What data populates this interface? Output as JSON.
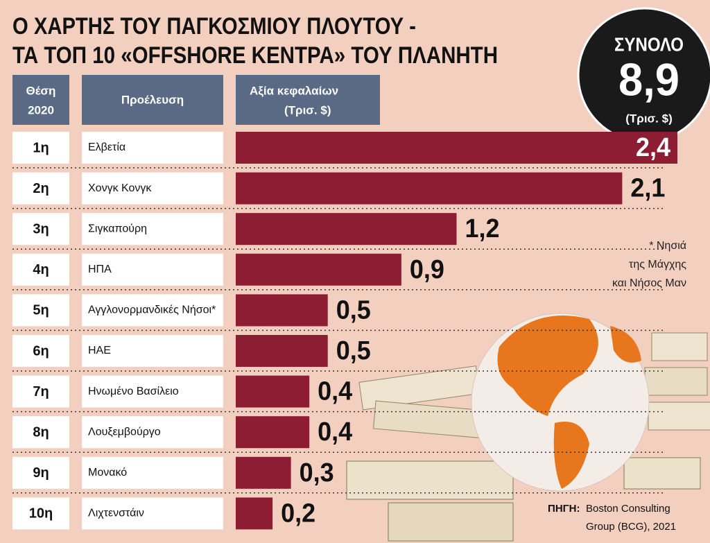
{
  "chart_data": {
    "type": "bar",
    "title_lines": [
      "Ο ΧΑΡΤΗΣ ΤΟΥ ΠΑΓΚΟΣΜΙΟΥ ΠΛΟΥΤΟΥ -",
      "ΤΑ ΤΟΠ 10 «OFFSHORE ΚΕΝΤΡΑ» ΤΟΥ ΠΛΑΝΗΤΗ"
    ],
    "column_headers": {
      "rank": [
        "Θέση",
        "2020"
      ],
      "origin": [
        "Προέλευση"
      ],
      "value": [
        "Αξία κεφαλαίων",
        "(Τρισ. $)"
      ]
    },
    "ranks": [
      "1η",
      "2η",
      "3η",
      "4η",
      "5η",
      "6η",
      "7η",
      "8η",
      "9η",
      "10η"
    ],
    "categories": [
      "Ελβετία",
      "Χονγκ Κονγκ",
      "Σιγκαπούρη",
      "ΗΠΑ",
      "Αγγλονορμανδικές Νήσοι*",
      "ΗΑΕ",
      "Ηνωμένο Βασίλειο",
      "Λουξεμβούργο",
      "Μονακό",
      "Λιχτενστάιν"
    ],
    "values": [
      2.4,
      2.1,
      1.2,
      0.9,
      0.5,
      0.5,
      0.4,
      0.4,
      0.3,
      0.2
    ],
    "value_labels": [
      "2,4",
      "2,1",
      "1,2",
      "0,9",
      "0,5",
      "0,5",
      "0,4",
      "0,4",
      "0,3",
      "0,2"
    ],
    "color": "#8c1d33",
    "xlim": [
      0,
      2.4
    ],
    "total": {
      "heading": "ΣΥΝΟΛΟ",
      "value": "8,9",
      "unit": "(Τρισ. $)"
    },
    "footnote": [
      "* Νησιά",
      "της Μάγχης",
      "και Νήσος Μαν"
    ],
    "source": {
      "label": "ΠΗΓΗ:",
      "text_lines": [
        "Boston Consulting",
        "Group (BCG), 2021"
      ]
    }
  }
}
